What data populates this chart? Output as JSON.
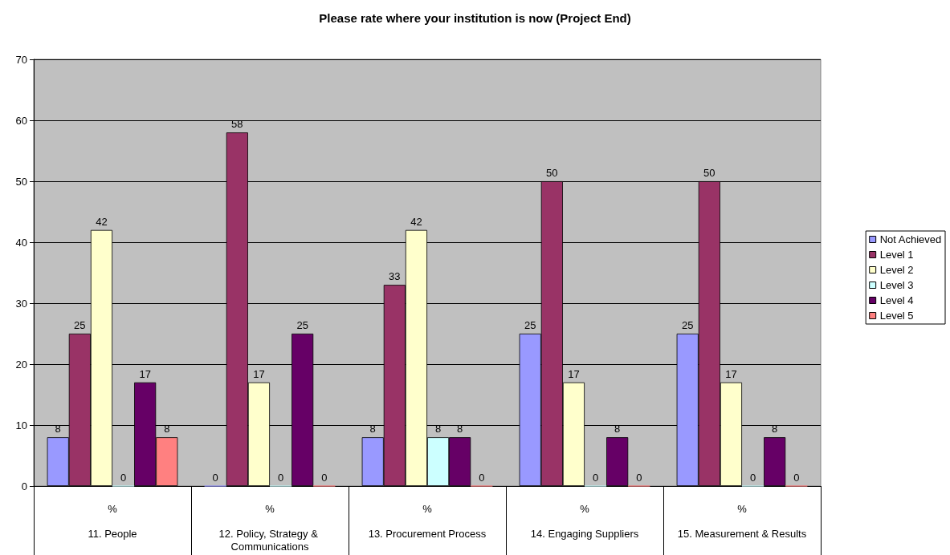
{
  "chart_data": {
    "type": "bar",
    "title": "Please rate where your institution is now (Project End)",
    "categories": [
      "11. People",
      "12. Policy, Strategy & Communications",
      "13. Procurement Process",
      "14. Engaging Suppliers",
      "15. Measurement & Results"
    ],
    "annotations": [
      "%",
      "%",
      "%",
      "%",
      "%"
    ],
    "series": [
      {
        "name": "Not Achieved",
        "color": "#9999ff",
        "values": [
          8,
          0,
          8,
          25,
          25
        ]
      },
      {
        "name": "Level 1",
        "color": "#993366",
        "values": [
          25,
          58,
          33,
          50,
          50
        ]
      },
      {
        "name": "Level 2",
        "color": "#ffffcc",
        "values": [
          42,
          17,
          42,
          17,
          17
        ]
      },
      {
        "name": "Level 3",
        "color": "#ccffff",
        "values": [
          0,
          0,
          8,
          0,
          0
        ]
      },
      {
        "name": "Level 4",
        "color": "#660066",
        "values": [
          17,
          25,
          8,
          8,
          8
        ]
      },
      {
        "name": "Level 5",
        "color": "#ff8080",
        "values": [
          8,
          0,
          0,
          0,
          0
        ]
      }
    ],
    "ylim": [
      0,
      70
    ],
    "yticks": [
      0,
      10,
      20,
      30,
      40,
      50,
      60,
      70
    ],
    "grid": "y",
    "legend": "right",
    "data_labels": true
  }
}
